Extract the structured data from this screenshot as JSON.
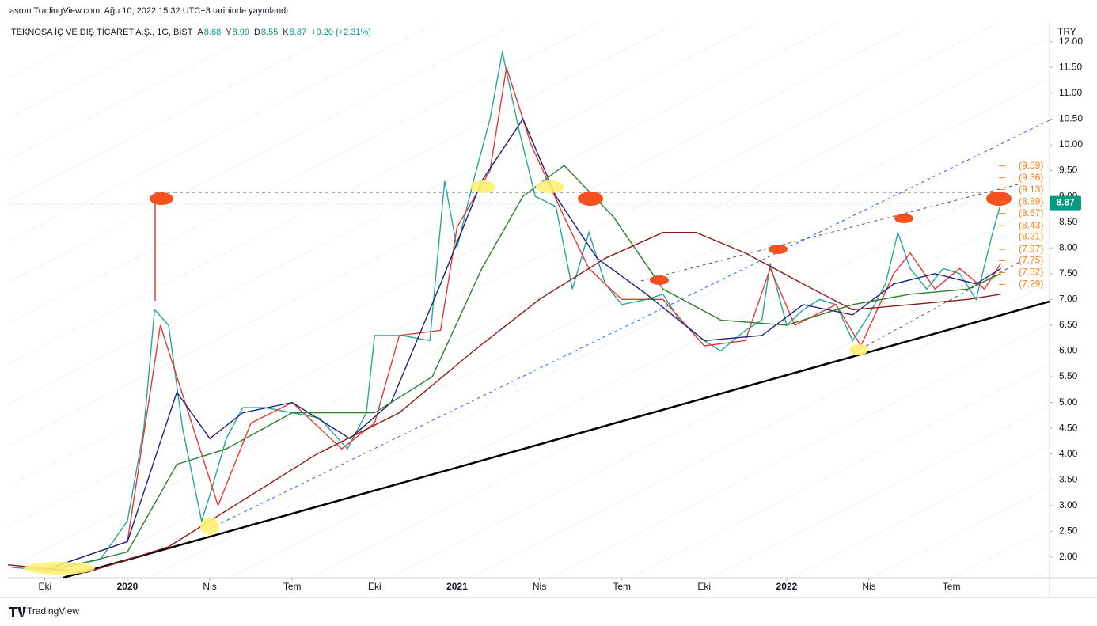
{
  "header": "asrnn TradingView.com, Ağu 10, 2022 15:32 UTC+3 tarihinde yayınlandı",
  "footer": "TradingView",
  "chart_data": {
    "type": "line",
    "title": "TEKNOSA İÇ VE DIŞ TİCARET A.Ş., 1G, BIST",
    "ohlc": [
      {
        "label": "A",
        "value": 8.68
      },
      {
        "label": "Y",
        "value": 8.99
      },
      {
        "label": "D",
        "value": 8.55
      },
      {
        "label": "K",
        "value": 8.87
      }
    ],
    "change": "+0.20 (+2.31%)",
    "currency": "TRY",
    "last_price": 8.87,
    "xlim": [
      -0.45,
      12.19
    ],
    "xticks": [
      {
        "value": 0,
        "label": "Eki"
      },
      {
        "value": 1,
        "label": "2020"
      },
      {
        "value": 2,
        "label": "Nis"
      },
      {
        "value": 3,
        "label": "Tem"
      },
      {
        "value": 4,
        "label": "Eki"
      },
      {
        "value": 5,
        "label": "2021"
      },
      {
        "value": 6,
        "label": "Nis"
      },
      {
        "value": 7,
        "label": "Tem"
      },
      {
        "value": 8,
        "label": "Eki"
      },
      {
        "value": 9,
        "label": "2022"
      },
      {
        "value": 10,
        "label": "Nis"
      },
      {
        "value": 11,
        "label": "Tem"
      }
    ],
    "ylim": [
      1.6,
      12.38
    ],
    "yticks": [
      {
        "value": 2,
        "label": "2.00"
      },
      {
        "value": 2.5,
        "label": "2.50"
      },
      {
        "value": 3,
        "label": "3.00"
      },
      {
        "value": 3.5,
        "label": "3.50"
      },
      {
        "value": 4,
        "label": "4.00"
      },
      {
        "value": 4.5,
        "label": "4.50"
      },
      {
        "value": 5,
        "label": "5.00"
      },
      {
        "value": 5.5,
        "label": "5.50"
      },
      {
        "value": 6,
        "label": "6.00"
      },
      {
        "value": 6.5,
        "label": "6.50"
      },
      {
        "value": 7,
        "label": "7.00"
      },
      {
        "value": 7.5,
        "label": "7.50"
      },
      {
        "value": 8,
        "label": "8.00"
      },
      {
        "value": 8.5,
        "label": "8.50"
      },
      {
        "value": 9,
        "label": "9.00"
      },
      {
        "value": 9.5,
        "label": "9.50"
      },
      {
        "value": 10,
        "label": "10.00"
      },
      {
        "value": 10.5,
        "label": "10.50"
      },
      {
        "value": 11,
        "label": "11.00"
      },
      {
        "value": 11.5,
        "label": "11.50"
      },
      {
        "value": 12,
        "label": "12.00"
      }
    ],
    "levels": [
      {
        "value": 9.59,
        "label": "(9.59)"
      },
      {
        "value": 9.36,
        "label": "(9.36)"
      },
      {
        "value": 9.13,
        "label": "(9.13)"
      },
      {
        "value": 8.89,
        "label": "(8.89)"
      },
      {
        "value": 8.67,
        "label": "(8.67)"
      },
      {
        "value": 8.43,
        "label": "(8.43)"
      },
      {
        "value": 8.21,
        "label": "(8.21)"
      },
      {
        "value": 7.97,
        "label": "(7.97)"
      },
      {
        "value": 7.75,
        "label": "(7.75)"
      },
      {
        "value": 7.52,
        "label": "(7.52)"
      },
      {
        "value": 7.29,
        "label": "(7.29)"
      }
    ],
    "level_color": "#f57f17",
    "series": [
      {
        "color": "#26a69a",
        "x": [
          -0.4,
          0,
          0.33,
          0.67,
          1.0,
          1.2,
          1.33,
          1.5,
          1.67,
          1.9,
          2.0,
          2.2,
          2.4,
          2.67,
          3.0,
          3.33,
          3.67,
          3.9,
          4.0,
          4.33,
          4.67,
          4.85,
          5.0,
          5.2,
          5.4,
          5.55,
          5.75,
          5.95,
          6.2,
          6.4,
          6.6,
          6.8,
          7.0,
          7.3,
          7.5,
          7.7,
          8.0,
          8.2,
          8.5,
          8.7,
          8.8,
          9.0,
          9.2,
          9.4,
          9.6,
          9.8,
          10.0,
          10.2,
          10.35,
          10.5,
          10.7,
          10.9,
          11.1,
          11.3,
          11.5,
          11.6
        ],
        "values": [
          1.8,
          1.75,
          1.85,
          1.95,
          2.7,
          4.5,
          6.8,
          6.5,
          4.5,
          2.7,
          3.2,
          4.3,
          4.9,
          4.9,
          4.8,
          4.7,
          4.1,
          4.8,
          6.3,
          6.3,
          6.2,
          9.3,
          8.0,
          9.3,
          10.5,
          11.8,
          10.3,
          9.0,
          8.8,
          7.2,
          8.3,
          7.3,
          6.9,
          7.0,
          7.1,
          6.6,
          6.2,
          6.0,
          6.4,
          6.6,
          7.7,
          6.5,
          6.8,
          7.0,
          6.9,
          6.2,
          6.7,
          7.3,
          8.3,
          7.6,
          7.2,
          7.6,
          7.5,
          7.0,
          8.3,
          8.87
        ]
      },
      {
        "color": "#e53935",
        "x": [
          0,
          1,
          1.4,
          1.8,
          2.1,
          2.5,
          3,
          3.6,
          4.0,
          4.3,
          4.8,
          5.0,
          5.4,
          5.6,
          5.9,
          6.3,
          6.6,
          7.0,
          7.5,
          8.0,
          8.5,
          8.8,
          9.1,
          9.6,
          9.9,
          10.3,
          10.5,
          10.8,
          11.1,
          11.4,
          11.6
        ],
        "values": [
          1.75,
          2.3,
          6.5,
          4.5,
          3.0,
          4.6,
          5.0,
          4.1,
          4.6,
          6.3,
          6.4,
          8.4,
          9.5,
          11.5,
          10.0,
          8.6,
          7.6,
          7.0,
          7.0,
          6.1,
          6.2,
          7.6,
          6.5,
          6.9,
          6.1,
          7.5,
          7.9,
          7.2,
          7.6,
          7.2,
          7.7
        ]
      },
      {
        "color": "#1a237e",
        "x": [
          0,
          1,
          1.6,
          2,
          2.4,
          3,
          3.7,
          4.2,
          4.8,
          5.3,
          5.8,
          6.2,
          6.7,
          7.3,
          8.0,
          8.7,
          9.2,
          9.8,
          10.3,
          10.8,
          11.3,
          11.6
        ],
        "values": [
          1.75,
          2.3,
          5.2,
          4.3,
          4.8,
          5.0,
          4.3,
          5.0,
          7.3,
          9.3,
          10.5,
          9.0,
          7.8,
          7.1,
          6.2,
          6.3,
          6.9,
          6.7,
          7.3,
          7.5,
          7.3,
          7.6
        ]
      },
      {
        "color": "#2e7d32",
        "x": [
          0,
          1,
          1.6,
          2.2,
          3,
          4,
          4.7,
          5.3,
          5.8,
          6.3,
          6.9,
          7.5,
          8.2,
          9.0,
          9.8,
          10.5,
          11.2,
          11.6
        ],
        "values": [
          1.7,
          2.1,
          3.8,
          4.1,
          4.8,
          4.8,
          5.5,
          7.6,
          9.0,
          9.6,
          8.6,
          7.2,
          6.6,
          6.5,
          6.9,
          7.1,
          7.2,
          7.5
        ]
      },
      {
        "color": "#8b1a1a",
        "x": [
          -0.45,
          0.5,
          1.5,
          2.3,
          3.3,
          4.3,
          5.2,
          6.0,
          6.8,
          7.5,
          7.9,
          8.5,
          9.2,
          9.8,
          10.5,
          11.2,
          11.6
        ],
        "values": [
          1.85,
          1.7,
          2.2,
          3.0,
          4.0,
          4.8,
          6.0,
          7.0,
          7.8,
          8.3,
          8.3,
          7.9,
          7.3,
          6.8,
          6.9,
          7.0,
          7.1
        ]
      }
    ]
  }
}
